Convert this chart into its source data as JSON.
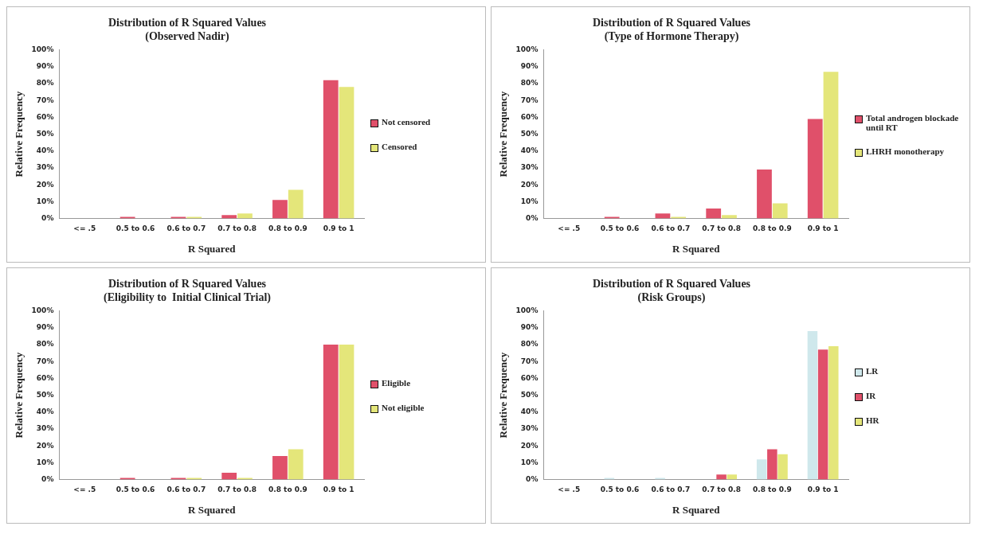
{
  "chart_data": [
    {
      "type": "bar",
      "title": "Distribution of R Squared Values",
      "subtitle": "(Observed Nadir)",
      "xlabel": "R Squared",
      "ylabel": "Relative Frequency",
      "categories": [
        "<= .5",
        "0.5 to 0.6",
        "0.6 to 0.7",
        "0.7 to 0.8",
        "0.8 to 0.9",
        "0.9 to 1"
      ],
      "series": [
        {
          "name": "Not censored",
          "color": "#e0506a",
          "values": [
            0,
            1,
            1,
            2,
            11,
            82
          ]
        },
        {
          "name": "Censored",
          "color": "#e4e67a",
          "values": [
            0,
            0,
            1,
            3,
            17,
            78
          ]
        }
      ],
      "ylim": [
        0,
        100
      ],
      "yticks": [
        {
          "value": 0,
          "label": "0%"
        },
        {
          "value": 10,
          "label": "10%"
        },
        {
          "value": 20,
          "label": "20%"
        },
        {
          "value": 30,
          "label": "30%"
        },
        {
          "value": 40,
          "label": "40%"
        },
        {
          "value": 50,
          "label": "50%"
        },
        {
          "value": 60,
          "label": "60%"
        },
        {
          "value": 70,
          "label": "70%"
        },
        {
          "value": 80,
          "label": "80%"
        },
        {
          "value": 90,
          "label": "90%"
        },
        {
          "value": 100,
          "label": "100%"
        }
      ],
      "grid": false,
      "legend": "right"
    },
    {
      "type": "bar",
      "title": "Distribution of R Squared Values",
      "subtitle": "(Type of Hormone Therapy)",
      "xlabel": "R Squared",
      "ylabel": "Relative Frequency",
      "categories": [
        "<= .5",
        "0.5 to 0.6",
        "0.6 to 0.7",
        "0.7 to 0.8",
        "0.8 to 0.9",
        "0.9 to 1"
      ],
      "series": [
        {
          "name": "Total androgen blockade until RT",
          "color": "#e0506a",
          "values": [
            0,
            1,
            3,
            6,
            29,
            59
          ]
        },
        {
          "name": "LHRH monotherapy",
          "color": "#e4e67a",
          "values": [
            0,
            0,
            1,
            2,
            9,
            87
          ]
        }
      ],
      "ylim": [
        0,
        100
      ],
      "yticks": [
        {
          "value": 0,
          "label": "0%"
        },
        {
          "value": 10,
          "label": "10%"
        },
        {
          "value": 20,
          "label": "20%"
        },
        {
          "value": 30,
          "label": "30%"
        },
        {
          "value": 40,
          "label": "40%"
        },
        {
          "value": 50,
          "label": "50%"
        },
        {
          "value": 60,
          "label": "60%"
        },
        {
          "value": 70,
          "label": "70%"
        },
        {
          "value": 80,
          "label": "80%"
        },
        {
          "value": 90,
          "label": "90%"
        },
        {
          "value": 100,
          "label": "100%"
        }
      ],
      "grid": false,
      "legend": "right"
    },
    {
      "type": "bar",
      "title": "Distribution of R Squared Values",
      "subtitle": "(Eligibility to  Initial Clinical Trial)",
      "xlabel": "R Squared",
      "ylabel": "Relative Frequency",
      "categories": [
        "<= .5",
        "0.5 to 0.6",
        "0.6 to 0.7",
        "0.7 to 0.8",
        "0.8 to 0.9",
        "0.9 to 1"
      ],
      "series": [
        {
          "name": "Eligible",
          "color": "#e0506a",
          "values": [
            0,
            1,
            1,
            4,
            14,
            80
          ]
        },
        {
          "name": "Not eligible",
          "color": "#e4e67a",
          "values": [
            0,
            0,
            1,
            1,
            18,
            80
          ]
        }
      ],
      "ylim": [
        0,
        100
      ],
      "yticks": [
        {
          "value": 0,
          "label": "0%"
        },
        {
          "value": 10,
          "label": "10%"
        },
        {
          "value": 20,
          "label": "20%"
        },
        {
          "value": 30,
          "label": "30%"
        },
        {
          "value": 40,
          "label": "40%"
        },
        {
          "value": 50,
          "label": "50%"
        },
        {
          "value": 60,
          "label": "60%"
        },
        {
          "value": 70,
          "label": "70%"
        },
        {
          "value": 80,
          "label": "80%"
        },
        {
          "value": 90,
          "label": "90%"
        },
        {
          "value": 100,
          "label": "100%"
        }
      ],
      "grid": false,
      "legend": "right"
    },
    {
      "type": "bar",
      "title": "Distribution of R Squared Values",
      "subtitle": "(Risk Groups)",
      "xlabel": "R Squared",
      "ylabel": "Relative Frequency",
      "categories": [
        "<= .5",
        "0.5 to 0.6",
        "0.6 to 0.7",
        "0.7 to 0.8",
        "0.8 to 0.9",
        "0.9 to 1"
      ],
      "series": [
        {
          "name": "LR",
          "color": "#cfe8ec",
          "values": [
            0,
            1,
            1,
            0,
            12,
            88
          ]
        },
        {
          "name": "IR",
          "color": "#e0506a",
          "values": [
            0,
            0,
            0,
            3,
            18,
            77
          ]
        },
        {
          "name": "HR",
          "color": "#e4e67a",
          "values": [
            0,
            0,
            0,
            3,
            15,
            79
          ]
        }
      ],
      "ylim": [
        0,
        100
      ],
      "yticks": [
        {
          "value": 0,
          "label": "0%"
        },
        {
          "value": 10,
          "label": "10%"
        },
        {
          "value": 20,
          "label": "20%"
        },
        {
          "value": 30,
          "label": "30%"
        },
        {
          "value": 40,
          "label": "40%"
        },
        {
          "value": 50,
          "label": "50%"
        },
        {
          "value": 60,
          "label": "60%"
        },
        {
          "value": 70,
          "label": "70%"
        },
        {
          "value": 80,
          "label": "80%"
        },
        {
          "value": 90,
          "label": "90%"
        },
        {
          "value": 100,
          "label": "100%"
        }
      ],
      "grid": false,
      "legend": "right"
    }
  ]
}
